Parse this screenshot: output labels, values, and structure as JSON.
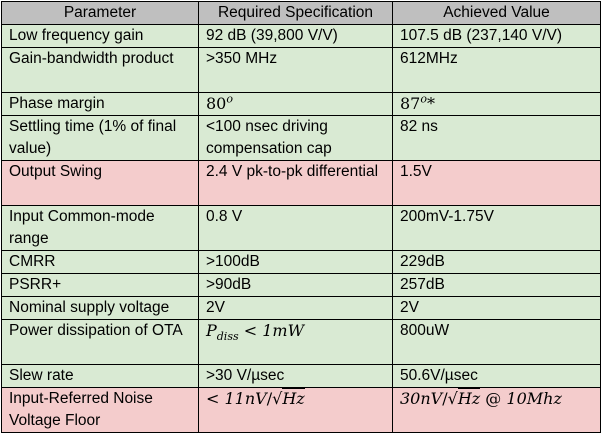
{
  "headers": {
    "parameter": "Parameter",
    "required": "Required Specification",
    "achieved": "Achieved Value"
  },
  "rows": [
    {
      "parameter": "Low frequency gain",
      "required": "92 dB (39,800 V/V)",
      "achieved": "107.5 dB (237,140 V/V)",
      "status": "ok"
    },
    {
      "parameter": "Gain-bandwidth product",
      "required": ">350 MHz",
      "achieved": "612MHz",
      "status": "ok"
    },
    {
      "parameter": "Phase margin",
      "required_value": "80",
      "required_unit": "o",
      "achieved_value": "87",
      "achieved_unit": "o",
      "achieved_note": "*",
      "status": "ok"
    },
    {
      "parameter": "Settling time (1% of final value)",
      "required": "<100 nsec driving compensation cap",
      "achieved": "82 ns",
      "status": "ok"
    },
    {
      "parameter": "Output Swing",
      "required": "2.4 V pk-to-pk differential",
      "achieved": "1.5V",
      "status": "bad"
    },
    {
      "parameter": "Input Common-mode range",
      "required": "0.8 V",
      "achieved": "200mV-1.75V",
      "status": "ok"
    },
    {
      "parameter": "CMRR",
      "required": ">100dB",
      "achieved": "229dB",
      "status": "ok"
    },
    {
      "parameter": "PSRR+",
      "required": ">90dB",
      "achieved": "257dB",
      "status": "ok"
    },
    {
      "parameter": "Nominal supply voltage",
      "required": "2V",
      "achieved": "2V",
      "status": "ok"
    },
    {
      "parameter": "Power dissipation of OTA",
      "required_symbol": "P",
      "required_subscript": "diss",
      "required_op": "<",
      "required_value": "1mW",
      "achieved": "800uW",
      "status": "ok"
    },
    {
      "parameter": "Slew rate",
      "required": ">30 V/µsec",
      "achieved": "50.6V/µsec",
      "status": "ok"
    },
    {
      "parameter": "Input-Referred Noise Voltage Floor",
      "required_op": "<",
      "required_value": "11nV",
      "required_root": "Hz",
      "achieved_value": "30nV",
      "achieved_root": "Hz",
      "achieved_at": "@",
      "achieved_freq": "10Mhz",
      "status": "bad"
    }
  ],
  "colors": {
    "header": "#bfbfbf",
    "ok": "#d9ead3",
    "bad": "#f4cccc"
  }
}
